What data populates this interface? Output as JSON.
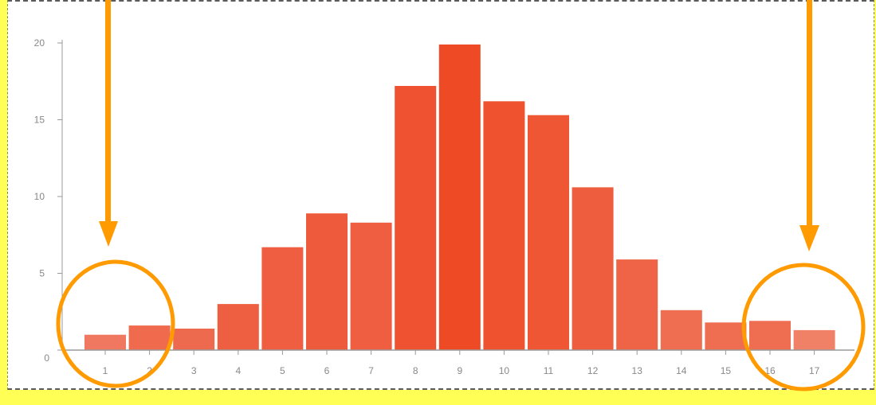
{
  "chart_data": {
    "type": "bar",
    "title": "",
    "xlabel": "",
    "ylabel": "",
    "categories": [
      "1",
      "2",
      "3",
      "4",
      "5",
      "6",
      "7",
      "8",
      "9",
      "10",
      "11",
      "12",
      "13",
      "14",
      "15",
      "16",
      "17"
    ],
    "values": [
      1.0,
      1.6,
      1.4,
      3.0,
      6.7,
      8.9,
      8.3,
      17.2,
      19.9,
      16.2,
      15.3,
      10.6,
      5.9,
      2.6,
      1.8,
      1.9,
      1.3
    ],
    "bar_colors": [
      "#f07860",
      "#f06a4e",
      "#ee6a4e",
      "#ee5e40",
      "#ef5e40",
      "#ee5a3c",
      "#ef5e40",
      "#ee5230",
      "#ee4a25",
      "#ef522f",
      "#ef5633",
      "#ee5e3e",
      "#ef6446",
      "#ef6d50",
      "#ef6d50",
      "#ef6d50",
      "#f08066"
    ],
    "ylim": [
      0,
      20
    ],
    "yticks": [
      0,
      5,
      10,
      15,
      20
    ],
    "grid": false,
    "annotations": {
      "arrow_color": "#ff9a00",
      "circle_color": "#ff9a00",
      "highlighted_categories": [
        "1-2",
        "16-17"
      ]
    }
  }
}
